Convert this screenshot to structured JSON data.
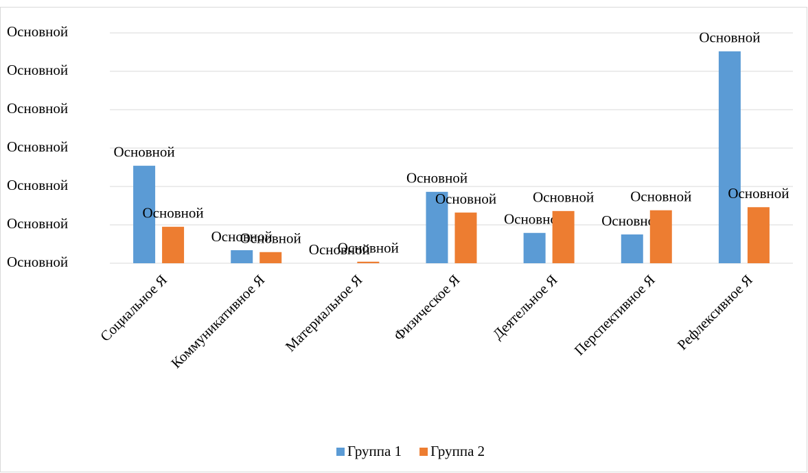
{
  "chart_data": {
    "type": "bar",
    "categories": [
      "Социальное Я",
      "Коммуникативное Я",
      "Материальное Я",
      "Физическое Я",
      "Деятельное Я",
      "Перспективное Я",
      "Рефлексивное Я"
    ],
    "series": [
      {
        "name": "Группа 1",
        "color": "#5b9bd5",
        "values": [
          2.54,
          0.34,
          0,
          1.86,
          0.79,
          0.75,
          5.52
        ],
        "value_labels": [
          "Основной",
          "Основной",
          "Основной",
          "Основной",
          "Основной",
          "Основной",
          "Основной"
        ]
      },
      {
        "name": "Группа 2",
        "color": "#ed7d31",
        "values": [
          0.95,
          0.29,
          0.04,
          1.32,
          1.36,
          1.38,
          1.46
        ],
        "value_labels": [
          "Основной",
          "Основной",
          "Основной",
          "Основной",
          "Основной",
          "Основной",
          "Основной"
        ]
      }
    ],
    "ylim": [
      0,
      6
    ],
    "yticks": [
      {
        "value": 0,
        "label": "Основной"
      },
      {
        "value": 1,
        "label": "Основной"
      },
      {
        "value": 2,
        "label": "Основной"
      },
      {
        "value": 3,
        "label": "Основной"
      },
      {
        "value": 4,
        "label": "Основной"
      },
      {
        "value": 5,
        "label": "Основной"
      },
      {
        "value": 6,
        "label": "Основной"
      }
    ],
    "grid": true,
    "legend": "bottom"
  }
}
